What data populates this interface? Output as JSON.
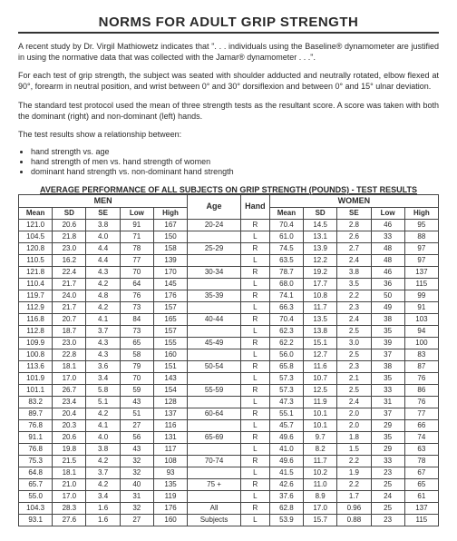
{
  "title": "NORMS FOR ADULT GRIP STRENGTH",
  "para1": "A recent study by Dr. Virgil Mathiowetz indicates that \". . . individuals using the Baseline® dynamometer are justified in using the normative data that was collected with the Jamar® dynamometer . . .\".",
  "para2": "For each test of grip strength, the subject was seated with shoulder adducted and neutrally rotated, elbow flexed at 90°, forearm in neutral position, and wrist between 0° and 30° dorsiflexion and between 0° and 15° ulnar deviation.",
  "para3": "The standard test protocol used the mean of three strength tests as the resultant score. A score was taken with both the dominant (right) and non-dominant (left) hands.",
  "para4": "The test results show a relationship between:",
  "bullets": [
    "hand strength vs. age",
    "hand strength of men vs. hand strength of women",
    "dominant hand strength vs. non-dominant hand strength"
  ],
  "table": {
    "caption": "AVERAGE PERFORMANCE OF ALL SUBJECTS ON GRIP STRENGTH (POUNDS) - TEST RESULTS",
    "group_men": "MEN",
    "group_women": "WOMEN",
    "cols": {
      "mean": "Mean",
      "sd": "SD",
      "se": "SE",
      "low": "Low",
      "high": "High",
      "age": "Age",
      "hand": "Hand"
    },
    "rows": [
      {
        "m": [
          "121.0",
          "20.6",
          "3.8",
          "91",
          "167"
        ],
        "age": "20-24",
        "hand": "R",
        "w": [
          "70.4",
          "14.5",
          "2.8",
          "46",
          "95"
        ]
      },
      {
        "m": [
          "104.5",
          "21.8",
          "4.0",
          "71",
          "150"
        ],
        "age": "",
        "hand": "L",
        "w": [
          "61.0",
          "13.1",
          "2.6",
          "33",
          "88"
        ]
      },
      {
        "m": [
          "120.8",
          "23.0",
          "4.4",
          "78",
          "158"
        ],
        "age": "25-29",
        "hand": "R",
        "w": [
          "74.5",
          "13.9",
          "2.7",
          "48",
          "97"
        ]
      },
      {
        "m": [
          "110.5",
          "16.2",
          "4.4",
          "77",
          "139"
        ],
        "age": "",
        "hand": "L",
        "w": [
          "63.5",
          "12.2",
          "2.4",
          "48",
          "97"
        ]
      },
      {
        "m": [
          "121.8",
          "22.4",
          "4.3",
          "70",
          "170"
        ],
        "age": "30-34",
        "hand": "R",
        "w": [
          "78.7",
          "19.2",
          "3.8",
          "46",
          "137"
        ]
      },
      {
        "m": [
          "110.4",
          "21.7",
          "4.2",
          "64",
          "145"
        ],
        "age": "",
        "hand": "L",
        "w": [
          "68.0",
          "17.7",
          "3.5",
          "36",
          "115"
        ]
      },
      {
        "m": [
          "119.7",
          "24.0",
          "4.8",
          "76",
          "176"
        ],
        "age": "35-39",
        "hand": "R",
        "w": [
          "74.1",
          "10.8",
          "2.2",
          "50",
          "99"
        ]
      },
      {
        "m": [
          "112.9",
          "21.7",
          "4.2",
          "73",
          "157"
        ],
        "age": "",
        "hand": "L",
        "w": [
          "66.3",
          "11.7",
          "2.3",
          "49",
          "91"
        ]
      },
      {
        "m": [
          "116.8",
          "20.7",
          "4.1",
          "84",
          "165"
        ],
        "age": "40-44",
        "hand": "R",
        "w": [
          "70.4",
          "13.5",
          "2.4",
          "38",
          "103"
        ]
      },
      {
        "m": [
          "112.8",
          "18.7",
          "3.7",
          "73",
          "157"
        ],
        "age": "",
        "hand": "L",
        "w": [
          "62.3",
          "13.8",
          "2.5",
          "35",
          "94"
        ]
      },
      {
        "m": [
          "109.9",
          "23.0",
          "4.3",
          "65",
          "155"
        ],
        "age": "45-49",
        "hand": "R",
        "w": [
          "62.2",
          "15.1",
          "3.0",
          "39",
          "100"
        ]
      },
      {
        "m": [
          "100.8",
          "22.8",
          "4.3",
          "58",
          "160"
        ],
        "age": "",
        "hand": "L",
        "w": [
          "56.0",
          "12.7",
          "2.5",
          "37",
          "83"
        ]
      },
      {
        "m": [
          "113.6",
          "18.1",
          "3.6",
          "79",
          "151"
        ],
        "age": "50-54",
        "hand": "R",
        "w": [
          "65.8",
          "11.6",
          "2.3",
          "38",
          "87"
        ]
      },
      {
        "m": [
          "101.9",
          "17.0",
          "3.4",
          "70",
          "143"
        ],
        "age": "",
        "hand": "L",
        "w": [
          "57.3",
          "10.7",
          "2.1",
          "35",
          "76"
        ]
      },
      {
        "m": [
          "101.1",
          "26.7",
          "5.8",
          "59",
          "154"
        ],
        "age": "55-59",
        "hand": "R",
        "w": [
          "57.3",
          "12.5",
          "2.5",
          "33",
          "86"
        ]
      },
      {
        "m": [
          "83.2",
          "23.4",
          "5.1",
          "43",
          "128"
        ],
        "age": "",
        "hand": "L",
        "w": [
          "47.3",
          "11.9",
          "2.4",
          "31",
          "76"
        ]
      },
      {
        "m": [
          "89.7",
          "20.4",
          "4.2",
          "51",
          "137"
        ],
        "age": "60-64",
        "hand": "R",
        "w": [
          "55.1",
          "10.1",
          "2.0",
          "37",
          "77"
        ]
      },
      {
        "m": [
          "76.8",
          "20.3",
          "4.1",
          "27",
          "116"
        ],
        "age": "",
        "hand": "L",
        "w": [
          "45.7",
          "10.1",
          "2.0",
          "29",
          "66"
        ]
      },
      {
        "m": [
          "91.1",
          "20.6",
          "4.0",
          "56",
          "131"
        ],
        "age": "65-69",
        "hand": "R",
        "w": [
          "49.6",
          "9.7",
          "1.8",
          "35",
          "74"
        ]
      },
      {
        "m": [
          "76.8",
          "19.8",
          "3.8",
          "43",
          "117"
        ],
        "age": "",
        "hand": "L",
        "w": [
          "41.0",
          "8.2",
          "1.5",
          "29",
          "63"
        ]
      },
      {
        "m": [
          "75.3",
          "21.5",
          "4.2",
          "32",
          "108"
        ],
        "age": "70-74",
        "hand": "R",
        "w": [
          "49.6",
          "11.7",
          "2.2",
          "33",
          "78"
        ]
      },
      {
        "m": [
          "64.8",
          "18.1",
          "3.7",
          "32",
          "93"
        ],
        "age": "",
        "hand": "L",
        "w": [
          "41.5",
          "10.2",
          "1.9",
          "23",
          "67"
        ]
      },
      {
        "m": [
          "65.7",
          "21.0",
          "4.2",
          "40",
          "135"
        ],
        "age": "75 +",
        "hand": "R",
        "w": [
          "42.6",
          "11.0",
          "2.2",
          "25",
          "65"
        ]
      },
      {
        "m": [
          "55.0",
          "17.0",
          "3.4",
          "31",
          "119"
        ],
        "age": "",
        "hand": "L",
        "w": [
          "37.6",
          "8.9",
          "1.7",
          "24",
          "61"
        ]
      },
      {
        "m": [
          "104.3",
          "28.3",
          "1.6",
          "32",
          "176"
        ],
        "age": "All",
        "hand": "R",
        "w": [
          "62.8",
          "17.0",
          "0.96",
          "25",
          "137"
        ]
      },
      {
        "m": [
          "93.1",
          "27.6",
          "1.6",
          "27",
          "160"
        ],
        "age": "Subjects",
        "hand": "L",
        "w": [
          "53.9",
          "15.7",
          "0.88",
          "23",
          "115"
        ]
      }
    ]
  }
}
